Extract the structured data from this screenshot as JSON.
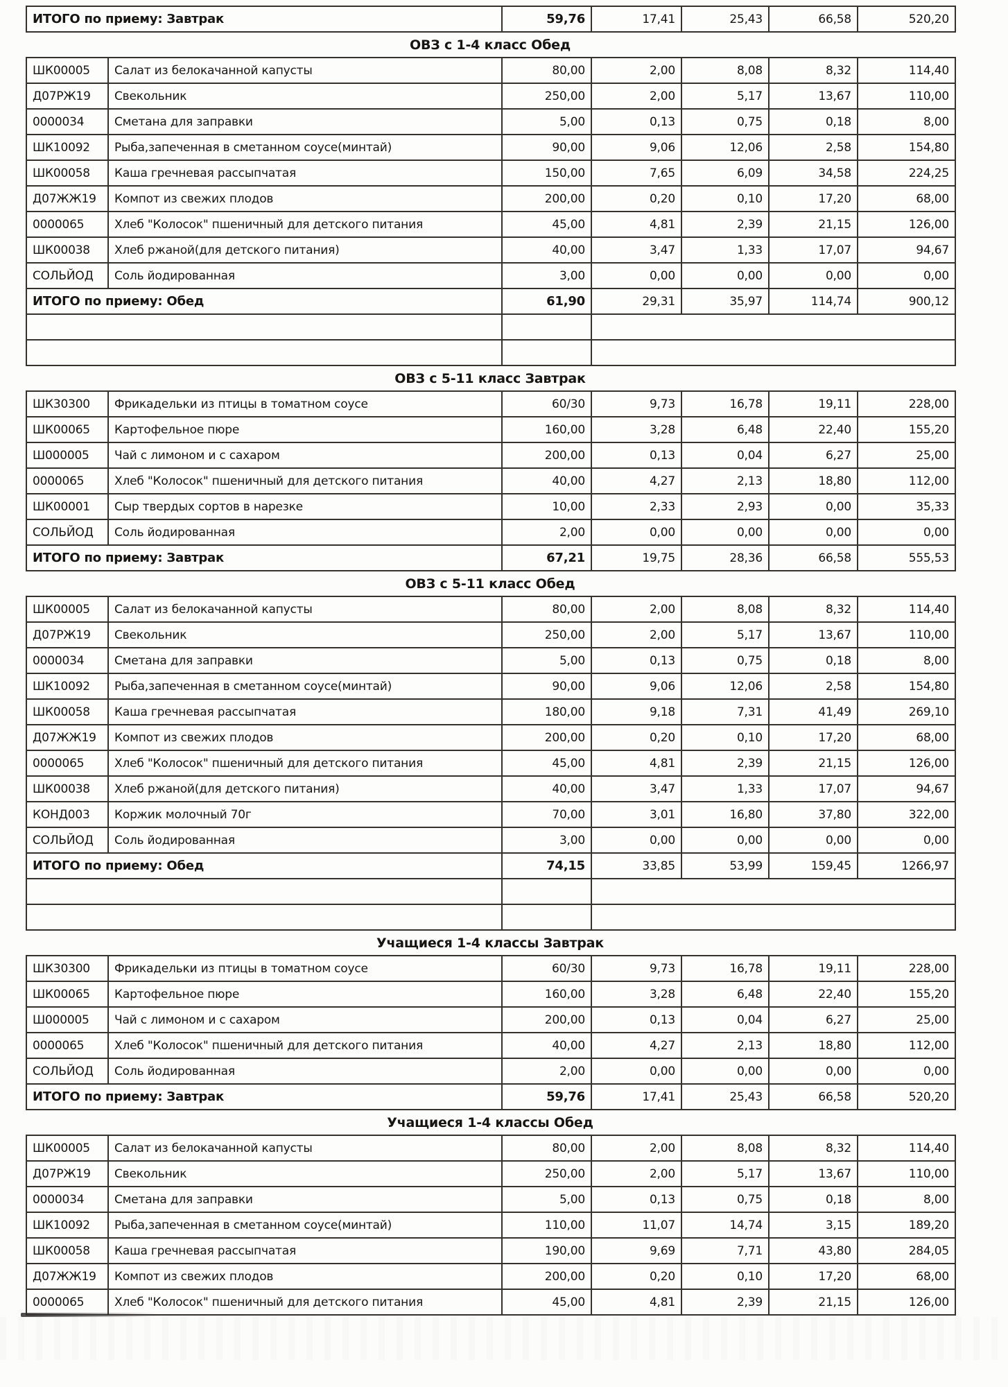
{
  "page": {
    "sections": [
      {
        "title": "",
        "rows": [],
        "total": {
          "label": "ИТОГО по приему: Завтрак",
          "values": [
            "59,76",
            "17,41",
            "25,43",
            "66,58",
            "520,20"
          ]
        },
        "empty_rows": 0
      },
      {
        "title": "ОВЗ с 1-4 класс Обед",
        "rows": [
          {
            "code": "ШК00005",
            "name": "Салат из белокачанной капусты",
            "values": [
              "80,00",
              "2,00",
              "8,08",
              "8,32",
              "114,40"
            ]
          },
          {
            "code": "Д07РЖ19",
            "name": "Свекольник",
            "values": [
              "250,00",
              "2,00",
              "5,17",
              "13,67",
              "110,00"
            ]
          },
          {
            "code": "0000034",
            "name": "Сметана для заправки",
            "values": [
              "5,00",
              "0,13",
              "0,75",
              "0,18",
              "8,00"
            ]
          },
          {
            "code": "ШК10092",
            "name": "Рыба,запеченная в сметанном соусе(минтай)",
            "values": [
              "90,00",
              "9,06",
              "12,06",
              "2,58",
              "154,80"
            ]
          },
          {
            "code": "ШК00058",
            "name": "Каша гречневая рассыпчатая",
            "values": [
              "150,00",
              "7,65",
              "6,09",
              "34,58",
              "224,25"
            ]
          },
          {
            "code": "Д07ЖЖ19",
            "name": "Компот из свежих плодов",
            "values": [
              "200,00",
              "0,20",
              "0,10",
              "17,20",
              "68,00"
            ]
          },
          {
            "code": "0000065",
            "name": "Хлеб \"Колосок\" пшеничный для детского питания",
            "values": [
              "45,00",
              "4,81",
              "2,39",
              "21,15",
              "126,00"
            ]
          },
          {
            "code": "ШК00038",
            "name": "Хлеб ржаной(для детского питания)",
            "values": [
              "40,00",
              "3,47",
              "1,33",
              "17,07",
              "94,67"
            ]
          },
          {
            "code": "СОЛЬЙОД",
            "name": "Соль йодированная",
            "values": [
              "3,00",
              "0,00",
              "0,00",
              "0,00",
              "0,00"
            ]
          }
        ],
        "total": {
          "label": "ИТОГО по приему: Обед",
          "values": [
            "61,90",
            "29,31",
            "35,97",
            "114,74",
            "900,12"
          ]
        },
        "empty_rows": 2
      },
      {
        "title": "ОВЗ с 5-11 класс Завтрак",
        "rows": [
          {
            "code": "ШК30300",
            "name": "Фрикадельки из птицы в томатном соусе",
            "values": [
              "60/30",
              "9,73",
              "16,78",
              "19,11",
              "228,00"
            ]
          },
          {
            "code": "ШК00065",
            "name": "Картофельное пюре",
            "values": [
              "160,00",
              "3,28",
              "6,48",
              "22,40",
              "155,20"
            ]
          },
          {
            "code": "Ш000005",
            "name": "Чай с лимоном и с сахаром",
            "values": [
              "200,00",
              "0,13",
              "0,04",
              "6,27",
              "25,00"
            ]
          },
          {
            "code": "0000065",
            "name": "Хлеб \"Колосок\" пшеничный для детского питания",
            "values": [
              "40,00",
              "4,27",
              "2,13",
              "18,80",
              "112,00"
            ]
          },
          {
            "code": "ШК00001",
            "name": "Сыр твердых сортов в нарезке",
            "values": [
              "10,00",
              "2,33",
              "2,93",
              "0,00",
              "35,33"
            ]
          },
          {
            "code": "СОЛЬЙОД",
            "name": "Соль йодированная",
            "values": [
              "2,00",
              "0,00",
              "0,00",
              "0,00",
              "0,00"
            ]
          }
        ],
        "total": {
          "label": "ИТОГО по приему: Завтрак",
          "values": [
            "67,21",
            "19,75",
            "28,36",
            "66,58",
            "555,53"
          ]
        },
        "empty_rows": 0
      },
      {
        "title": "ОВЗ с 5-11 класс Обед",
        "rows": [
          {
            "code": "ШК00005",
            "name": "Салат из белокачанной капусты",
            "values": [
              "80,00",
              "2,00",
              "8,08",
              "8,32",
              "114,40"
            ]
          },
          {
            "code": "Д07РЖ19",
            "name": "Свекольник",
            "values": [
              "250,00",
              "2,00",
              "5,17",
              "13,67",
              "110,00"
            ]
          },
          {
            "code": "0000034",
            "name": "Сметана для заправки",
            "values": [
              "5,00",
              "0,13",
              "0,75",
              "0,18",
              "8,00"
            ]
          },
          {
            "code": "ШК10092",
            "name": "Рыба,запеченная в сметанном соусе(минтай)",
            "values": [
              "90,00",
              "9,06",
              "12,06",
              "2,58",
              "154,80"
            ]
          },
          {
            "code": "ШК00058",
            "name": "Каша гречневая рассыпчатая",
            "values": [
              "180,00",
              "9,18",
              "7,31",
              "41,49",
              "269,10"
            ]
          },
          {
            "code": "Д07ЖЖ19",
            "name": "Компот из свежих плодов",
            "values": [
              "200,00",
              "0,20",
              "0,10",
              "17,20",
              "68,00"
            ]
          },
          {
            "code": "0000065",
            "name": "Хлеб \"Колосок\" пшеничный для детского питания",
            "values": [
              "45,00",
              "4,81",
              "2,39",
              "21,15",
              "126,00"
            ]
          },
          {
            "code": "ШК00038",
            "name": "Хлеб ржаной(для детского питания)",
            "values": [
              "40,00",
              "3,47",
              "1,33",
              "17,07",
              "94,67"
            ]
          },
          {
            "code": "КОНД003",
            "name": "Коржик молочный 70г",
            "values": [
              "70,00",
              "3,01",
              "16,80",
              "37,80",
              "322,00"
            ]
          },
          {
            "code": "СОЛЬЙОД",
            "name": "Соль йодированная",
            "values": [
              "3,00",
              "0,00",
              "0,00",
              "0,00",
              "0,00"
            ]
          }
        ],
        "total": {
          "label": "ИТОГО по приему: Обед",
          "values": [
            "74,15",
            "33,85",
            "53,99",
            "159,45",
            "1266,97"
          ]
        },
        "empty_rows": 2
      },
      {
        "title": "Учащиеся 1-4 классы Завтрак",
        "rows": [
          {
            "code": "ШК30300",
            "name": "Фрикадельки из птицы в томатном соусе",
            "values": [
              "60/30",
              "9,73",
              "16,78",
              "19,11",
              "228,00"
            ]
          },
          {
            "code": "ШК00065",
            "name": "Картофельное пюре",
            "values": [
              "160,00",
              "3,28",
              "6,48",
              "22,40",
              "155,20"
            ]
          },
          {
            "code": "Ш000005",
            "name": "Чай с лимоном и с сахаром",
            "values": [
              "200,00",
              "0,13",
              "0,04",
              "6,27",
              "25,00"
            ]
          },
          {
            "code": "0000065",
            "name": "Хлеб \"Колосок\" пшеничный для детского питания",
            "values": [
              "40,00",
              "4,27",
              "2,13",
              "18,80",
              "112,00"
            ]
          },
          {
            "code": "СОЛЬЙОД",
            "name": "Соль йодированная",
            "values": [
              "2,00",
              "0,00",
              "0,00",
              "0,00",
              "0,00"
            ]
          }
        ],
        "total": {
          "label": "ИТОГО по приему: Завтрак",
          "values": [
            "59,76",
            "17,41",
            "25,43",
            "66,58",
            "520,20"
          ]
        },
        "empty_rows": 0
      },
      {
        "title": "Учащиеся 1-4 классы Обед",
        "rows": [
          {
            "code": "ШК00005",
            "name": "Салат из белокачанной капусты",
            "values": [
              "80,00",
              "2,00",
              "8,08",
              "8,32",
              "114,40"
            ]
          },
          {
            "code": "Д07РЖ19",
            "name": "Свекольник",
            "values": [
              "250,00",
              "2,00",
              "5,17",
              "13,67",
              "110,00"
            ]
          },
          {
            "code": "0000034",
            "name": "Сметана для заправки",
            "values": [
              "5,00",
              "0,13",
              "0,75",
              "0,18",
              "8,00"
            ]
          },
          {
            "code": "ШК10092",
            "name": "Рыба,запеченная в сметанном соусе(минтай)",
            "values": [
              "110,00",
              "11,07",
              "14,74",
              "3,15",
              "189,20"
            ]
          },
          {
            "code": "ШК00058",
            "name": "Каша гречневая рассыпчатая",
            "values": [
              "190,00",
              "9,69",
              "7,71",
              "43,80",
              "284,05"
            ]
          },
          {
            "code": "Д07ЖЖ19",
            "name": "Компот из свежих плодов",
            "values": [
              "200,00",
              "0,20",
              "0,10",
              "17,20",
              "68,00"
            ]
          },
          {
            "code": "0000065",
            "name": "Хлеб \"Колосок\" пшеничный для детского питания",
            "values": [
              "45,00",
              "4,81",
              "2,39",
              "21,15",
              "126,00"
            ]
          }
        ],
        "total": null,
        "empty_rows": 0
      }
    ]
  }
}
